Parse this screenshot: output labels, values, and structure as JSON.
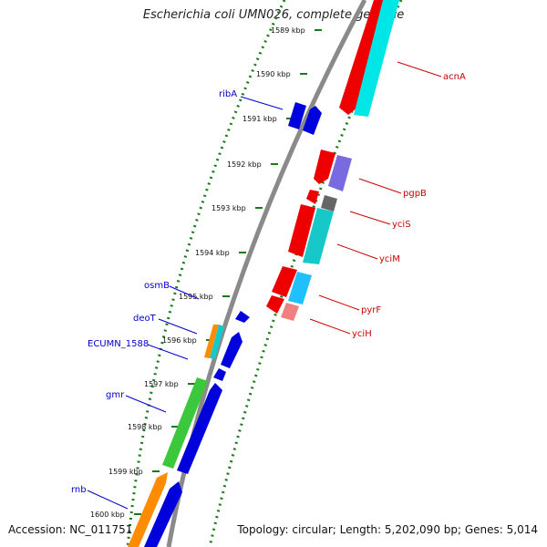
{
  "title": "Escherichia coli UMN026, complete genome",
  "footer": {
    "accession": "Accession: NC_011751",
    "summary": "Topology: circular; Length: 5,202,090 bp; Genes: 5,014"
  },
  "colors": {
    "backbone": "#8a8a8a",
    "ticks": "#1a7a1a",
    "label_left": "#0000cc",
    "label_right": "#cc0000"
  },
  "scale_ticks": [
    "1589 kbp",
    "1590 kbp",
    "1591 kbp",
    "1592 kbp",
    "1593 kbp",
    "1594 kbp",
    "1595 kbp",
    "1596 kbp",
    "1597 kbp",
    "1598 kbp",
    "1599 kbp",
    "1600 kbp"
  ],
  "genes_left": [
    {
      "name": "ribA"
    },
    {
      "name": "osmB"
    },
    {
      "name": "deoT"
    },
    {
      "name": "ECUMN_1588"
    },
    {
      "name": "gmr"
    },
    {
      "name": "rnb"
    }
  ],
  "genes_right": [
    {
      "name": "acnA"
    },
    {
      "name": "pgpB"
    },
    {
      "name": "yciS"
    },
    {
      "name": "yciM"
    },
    {
      "name": "pyrF"
    },
    {
      "name": "yciH"
    }
  ]
}
